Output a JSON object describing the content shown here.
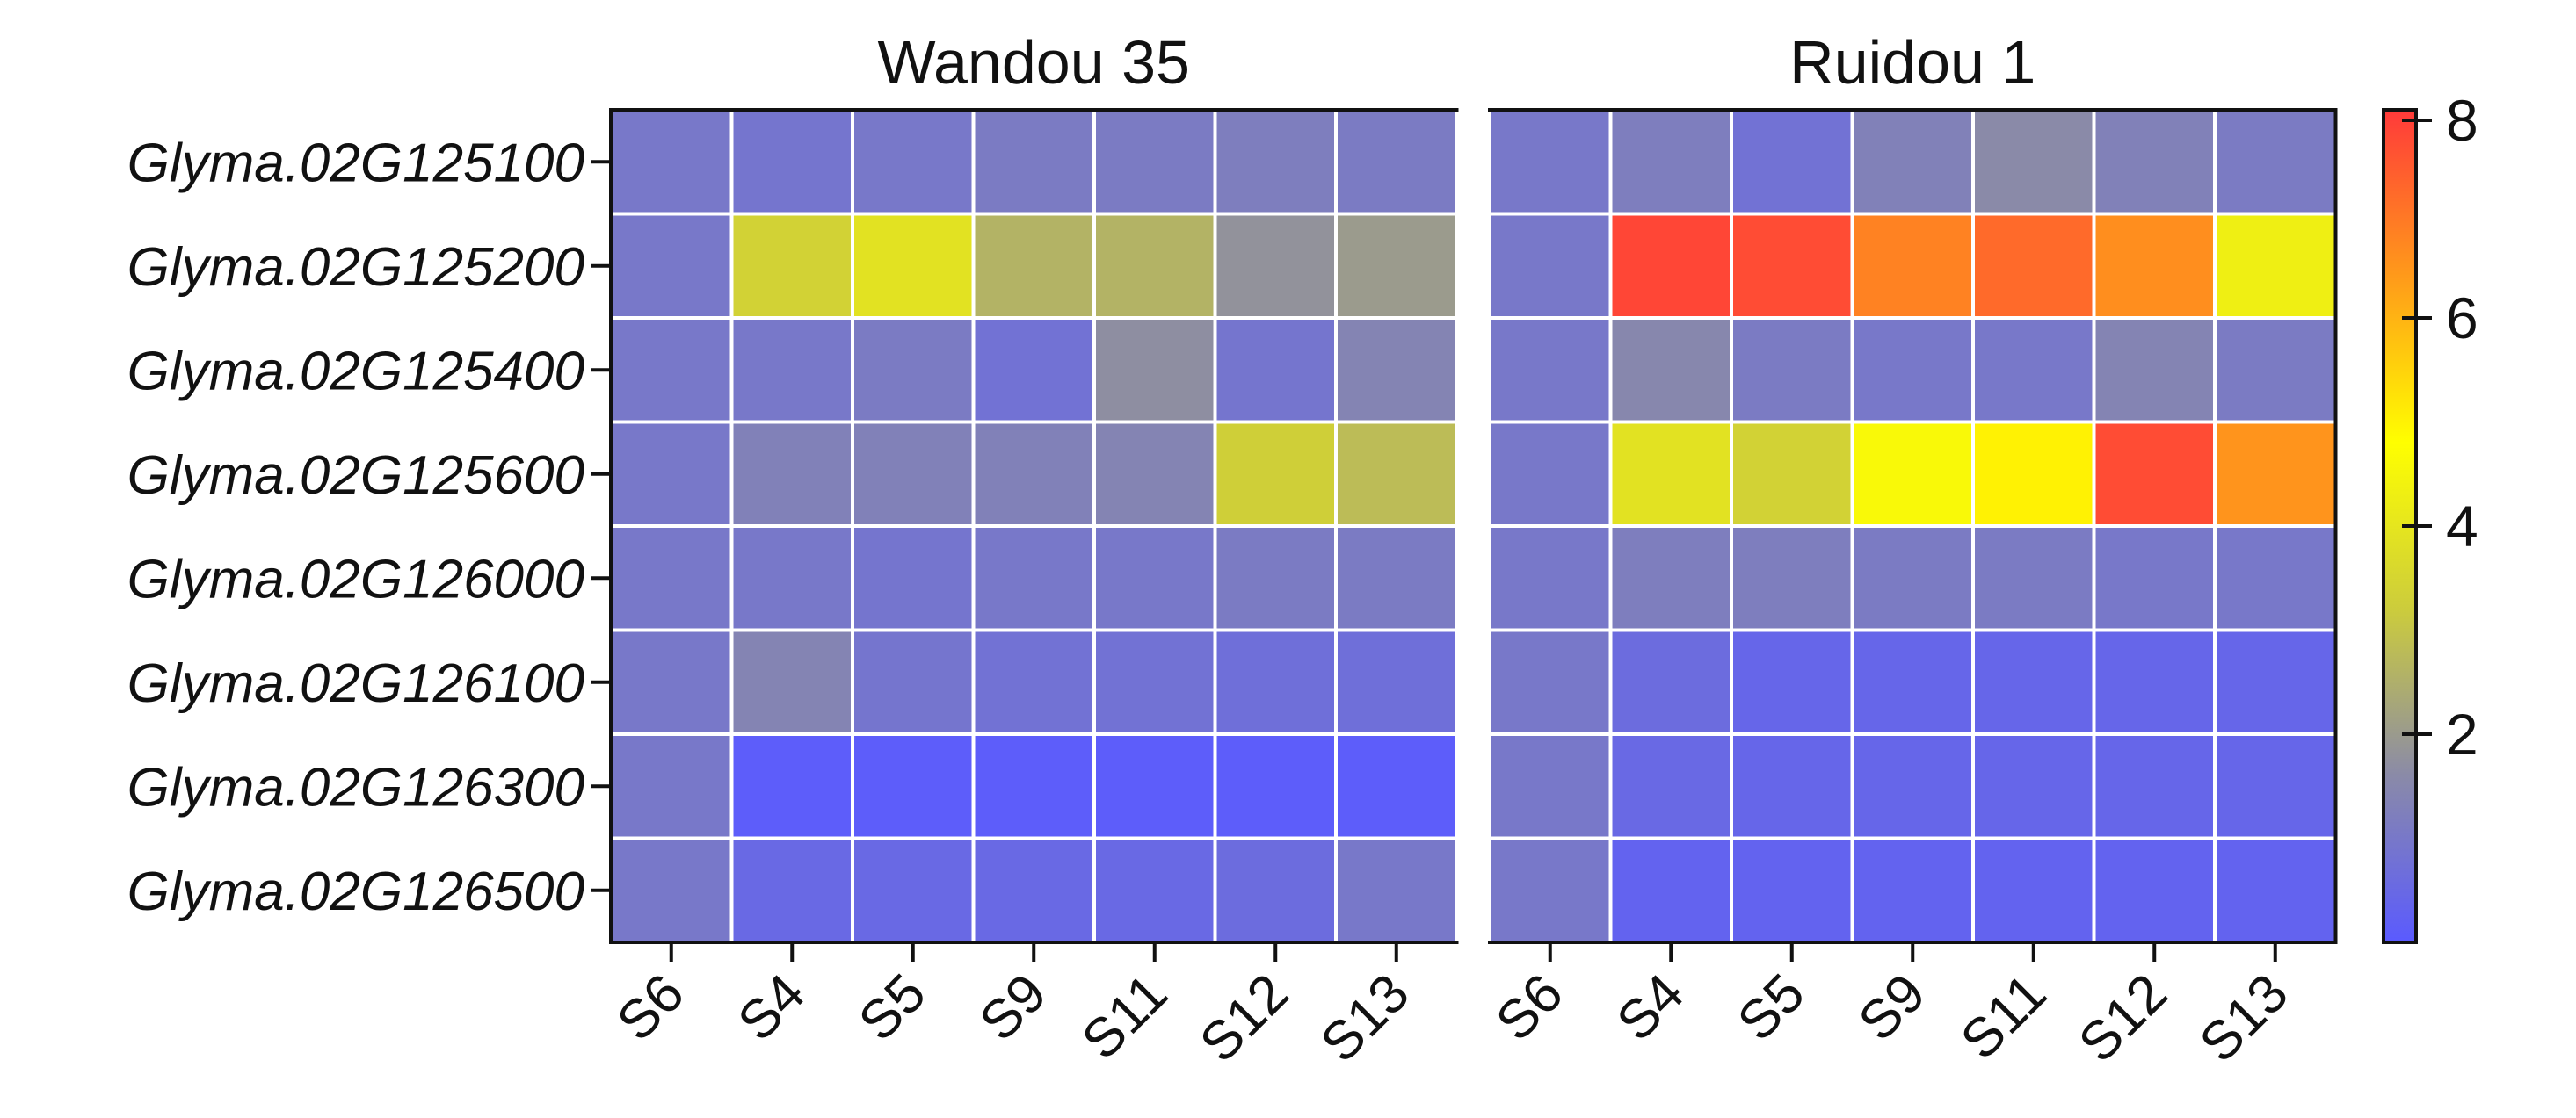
{
  "chart_data": {
    "type": "heatmap",
    "row_labels": [
      "Glyma.02G125100",
      "Glyma.02G125200",
      "Glyma.02G125400",
      "Glyma.02G125600",
      "Glyma.02G126000",
      "Glyma.02G126100",
      "Glyma.02G126300",
      "Glyma.02G126500"
    ],
    "panels": [
      {
        "title": "Wandou 35",
        "columns": [
          "S6",
          "S4",
          "S5",
          "S9",
          "S11",
          "S12",
          "S13"
        ],
        "values": [
          [
            1.0,
            0.9,
            1.0,
            1.1,
            1.1,
            1.2,
            1.1
          ],
          [
            1.0,
            3.4,
            3.9,
            2.6,
            2.6,
            1.8,
            2.0
          ],
          [
            1.0,
            1.0,
            1.1,
            0.8,
            1.7,
            0.9,
            1.4
          ],
          [
            1.0,
            1.3,
            1.3,
            1.3,
            1.4,
            3.3,
            2.8
          ],
          [
            1.0,
            1.0,
            0.9,
            1.0,
            1.0,
            1.1,
            1.1
          ],
          [
            1.0,
            1.4,
            0.9,
            0.8,
            0.8,
            0.7,
            0.7
          ],
          [
            1.0,
            0.1,
            0.1,
            0.1,
            0.1,
            0.1,
            0.1
          ],
          [
            1.0,
            0.5,
            0.5,
            0.5,
            0.5,
            0.6,
            1.0
          ]
        ]
      },
      {
        "title": "Ruidou 1",
        "columns": [
          "S6",
          "S4",
          "S5",
          "S9",
          "S11",
          "S12",
          "S13"
        ],
        "values": [
          [
            1.0,
            1.2,
            0.8,
            1.3,
            1.6,
            1.3,
            1.1
          ],
          [
            1.0,
            7.8,
            7.7,
            6.8,
            7.2,
            6.6,
            4.3
          ],
          [
            1.0,
            1.5,
            1.1,
            1.0,
            1.0,
            1.4,
            1.1
          ],
          [
            1.0,
            3.9,
            3.4,
            4.6,
            5.0,
            7.7,
            6.5
          ],
          [
            1.0,
            1.2,
            1.2,
            1.1,
            1.1,
            1.0,
            1.0
          ],
          [
            1.0,
            0.6,
            0.4,
            0.4,
            0.4,
            0.4,
            0.4
          ],
          [
            1.0,
            0.5,
            0.4,
            0.4,
            0.4,
            0.4,
            0.4
          ],
          [
            1.0,
            0.3,
            0.3,
            0.3,
            0.3,
            0.3,
            0.3
          ]
        ]
      }
    ],
    "colorbar": {
      "ticks": [
        2,
        4,
        6,
        8
      ],
      "range": [
        0,
        8
      ],
      "colors": [
        "#5a5aff",
        "#8a8aa8",
        "#cccc3c",
        "#ffff00",
        "#ff9a1a",
        "#ff3a3a"
      ]
    }
  }
}
